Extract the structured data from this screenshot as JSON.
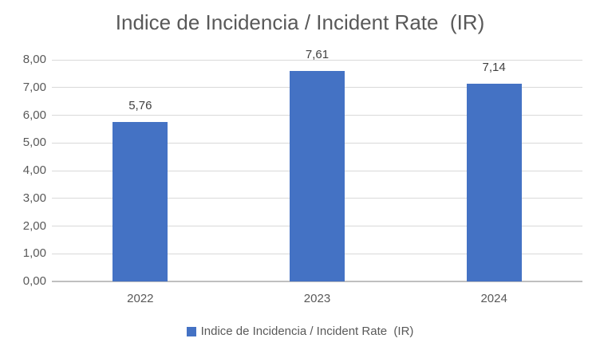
{
  "chart_data": {
    "type": "bar",
    "title": "Indice de Incidencia / Incident Rate  (IR)",
    "categories": [
      "2022",
      "2023",
      "2024"
    ],
    "values": [
      5.76,
      7.61,
      7.14
    ],
    "value_labels": [
      "5,76",
      "7,61",
      "7,14"
    ],
    "y_ticks": [
      "0,00",
      "1,00",
      "2,00",
      "3,00",
      "4,00",
      "5,00",
      "6,00",
      "7,00",
      "8,00"
    ],
    "ylim": [
      0,
      8
    ],
    "grid": true,
    "legend": {
      "position": "bottom",
      "label": "Indice de Incidencia / Incident Rate  (IR)"
    },
    "colors": {
      "bar": "#4472c4",
      "title_text": "#595959",
      "tick_text": "#595959",
      "data_label_text": "#404040",
      "gridline": "#d9d9d9",
      "axis_line": "#bfbfbf",
      "background": "#ffffff"
    }
  }
}
